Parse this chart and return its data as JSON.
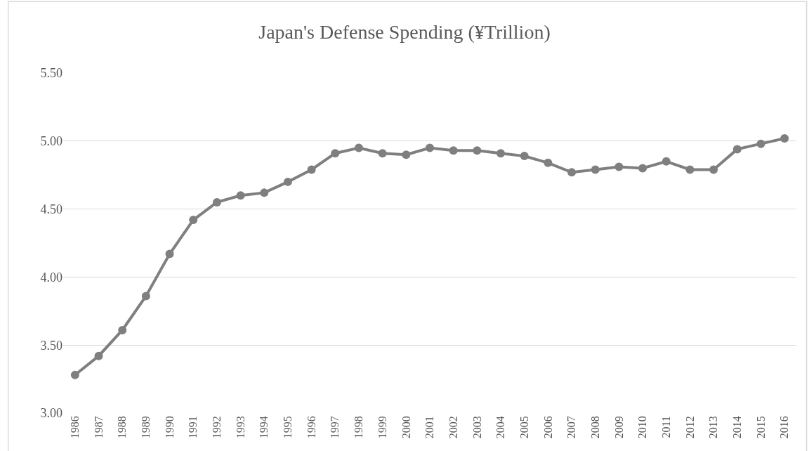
{
  "chart_data": {
    "type": "line",
    "title": "Japan's Defense Spending (¥Trillion)",
    "categories": [
      "1986",
      "1987",
      "1988",
      "1989",
      "1990",
      "1991",
      "1992",
      "1993",
      "1994",
      "1995",
      "1996",
      "1997",
      "1998",
      "1999",
      "2000",
      "2001",
      "2002",
      "2003",
      "2004",
      "2005",
      "2006",
      "2007",
      "2008",
      "2009",
      "2010",
      "2011",
      "2012",
      "2013",
      "2014",
      "2015",
      "2016"
    ],
    "series": [
      {
        "color": "#7f7f7f",
        "values": [
          3.28,
          3.42,
          3.61,
          3.86,
          4.17,
          4.42,
          4.55,
          4.6,
          4.62,
          4.7,
          4.79,
          4.91,
          4.95,
          4.91,
          4.9,
          4.95,
          4.93,
          4.93,
          4.91,
          4.89,
          4.84,
          4.77,
          4.79,
          4.81,
          4.8,
          4.85,
          4.79,
          4.79,
          4.94,
          4.98,
          5.02
        ]
      }
    ],
    "ylim": [
      3.0,
      5.5
    ],
    "yticks": [
      {
        "value": 3.0,
        "label": "3.00"
      },
      {
        "value": 3.5,
        "label": "3.50"
      },
      {
        "value": 4.0,
        "label": "4.00"
      },
      {
        "value": 4.5,
        "label": "4.50"
      },
      {
        "value": 5.0,
        "label": "5.00"
      },
      {
        "value": 5.5,
        "label": "5.50"
      }
    ],
    "grid": "y",
    "marker": "circle",
    "line_style": "solid"
  }
}
